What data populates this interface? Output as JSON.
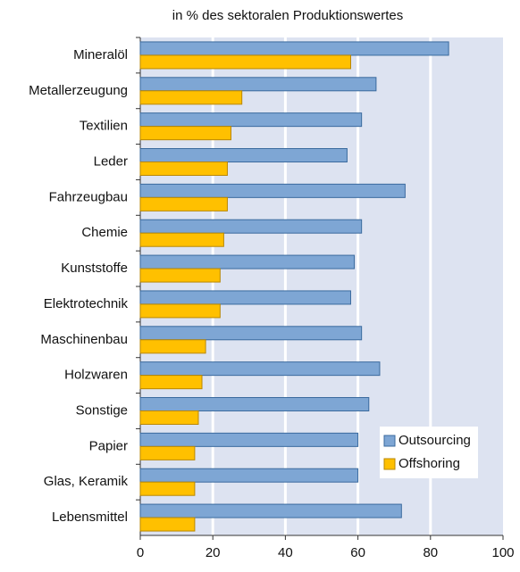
{
  "chart_data": {
    "type": "bar",
    "orientation": "horizontal",
    "title": "in % des sektoralen Produktionswertes",
    "categories": [
      "Mineralöl",
      "Metallerzeugung",
      "Textilien",
      "Leder",
      "Fahrzeugbau",
      "Chemie",
      "Kunststoffe",
      "Elektrotechnik",
      "Maschinenbau",
      "Holzwaren",
      "Sonstige",
      "Papier",
      "Glas, Keramik",
      "Lebensmittel"
    ],
    "series": [
      {
        "name": "Outsourcing",
        "color": "#7ea6d4",
        "values": [
          85,
          65,
          61,
          57,
          73,
          61,
          59,
          58,
          61,
          66,
          63,
          60,
          60,
          72
        ]
      },
      {
        "name": "Offshoring",
        "color": "#ffc000",
        "values": [
          58,
          28,
          25,
          24,
          24,
          23,
          22,
          22,
          18,
          17,
          16,
          15,
          15,
          15
        ]
      }
    ],
    "xlim": [
      0,
      100
    ],
    "xticks": [
      0,
      20,
      40,
      60,
      80,
      100
    ],
    "grid": true,
    "legend": "lower right"
  }
}
